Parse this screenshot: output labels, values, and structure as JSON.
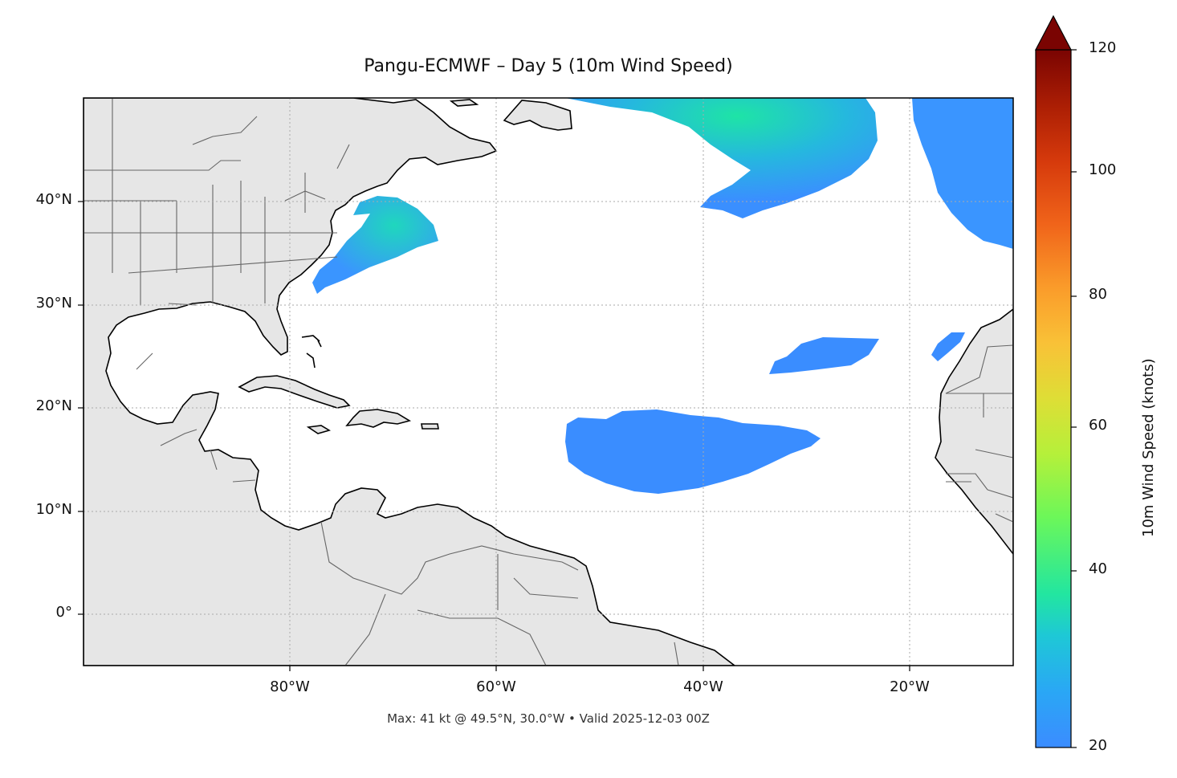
{
  "title": "Pangu-ECMWF – Day 5 (10m Wind Speed)",
  "footer": "Max: 41 kt @ 49.5°N, 30.0°W • Valid 2025-12-03 00Z",
  "map": {
    "projection": "PlateCarree",
    "extent": {
      "lon": [
        -100,
        -10
      ],
      "lat": [
        -5,
        50
      ]
    },
    "land_color": "#e6e6e6",
    "gridlines": "dotted"
  },
  "lat_labels": [
    "40°N",
    "30°N",
    "20°N",
    "10°N",
    "0°"
  ],
  "lon_labels": [
    "80°W",
    "60°W",
    "40°W",
    "20°W"
  ],
  "colorbar": {
    "label": "10m Wind Speed (knots)",
    "ticks": [
      "20",
      "40",
      "60",
      "80",
      "100",
      "120"
    ],
    "range": [
      20,
      120
    ],
    "extend": "max",
    "colormap": "turbo"
  },
  "wind_areas": [
    {
      "name": "us-east-coast-jet",
      "peak_kt": 30
    },
    {
      "name": "north-central-atlantic-jet",
      "peak_kt": 41
    },
    {
      "name": "northeast-atlantic-band",
      "peak_kt": 26
    },
    {
      "name": "subtropical-patch",
      "peak_kt": 22
    },
    {
      "name": "canary-patch",
      "peak_kt": 22
    },
    {
      "name": "tropical-trade-wind-area",
      "peak_kt": 22
    }
  ]
}
